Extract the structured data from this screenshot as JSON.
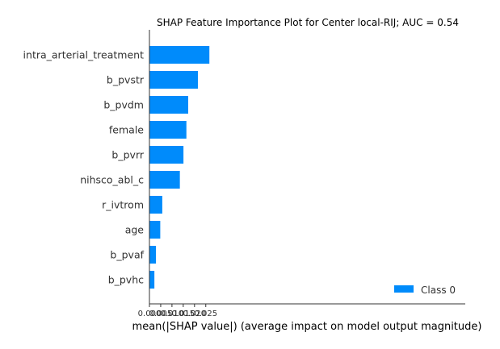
{
  "chart_data": {
    "type": "bar",
    "orientation": "horizontal",
    "title": "SHAP Feature Importance Plot for Center local-RIJ; AUC = 0.54",
    "xlabel": "mean(|SHAP value|) (average impact on model output magnitude)",
    "ylabel": "",
    "xlim": [
      0,
      0.028
    ],
    "xticks": [
      0.0,
      0.005,
      0.01,
      0.015,
      0.02,
      0.025
    ],
    "xtick_labels": [
      "0.000",
      "0.005",
      "0.010",
      "0.015",
      "0.020",
      "0.025"
    ],
    "categories": [
      "intra_arterial_treatment",
      "b_pvstr",
      "b_pvdm",
      "female",
      "b_pvrr",
      "nihsco_abl_c",
      "r_ivtrom",
      "age",
      "b_pvaf",
      "b_pvhc"
    ],
    "series": [
      {
        "name": "Class 0",
        "color": "#008bfb",
        "values": [
          0.0266,
          0.0215,
          0.0172,
          0.0164,
          0.0151,
          0.0135,
          0.0057,
          0.0048,
          0.0029,
          0.0022
        ]
      }
    ],
    "legend_position": "lower-right",
    "grid": false
  }
}
